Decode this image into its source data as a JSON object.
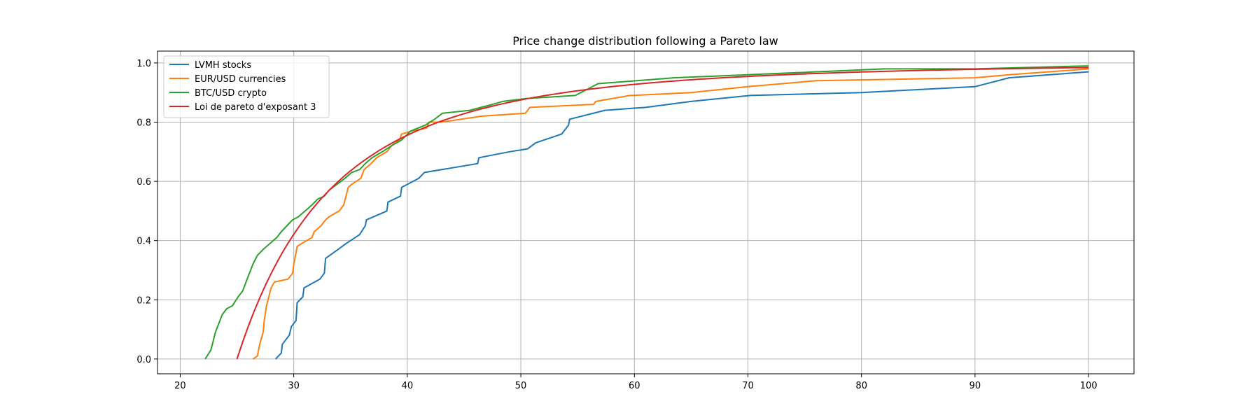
{
  "chart_data": {
    "type": "line",
    "title": "Price change distribution following a Pareto law",
    "xlabel": "",
    "ylabel": "",
    "xlim": [
      18,
      104
    ],
    "ylim": [
      -0.05,
      1.04
    ],
    "xticks": [
      20,
      30,
      40,
      50,
      60,
      70,
      80,
      90,
      100
    ],
    "yticks": [
      0.0,
      0.2,
      0.4,
      0.6,
      0.8,
      1.0
    ],
    "grid": true,
    "legend_position": "top-left",
    "series": [
      {
        "name": "LVMH stocks",
        "color": "#1f77b4",
        "points": [
          [
            28.4,
            0.0
          ],
          [
            28.9,
            0.02
          ],
          [
            29.0,
            0.05
          ],
          [
            29.6,
            0.08
          ],
          [
            29.8,
            0.11
          ],
          [
            30.2,
            0.13
          ],
          [
            30.3,
            0.19
          ],
          [
            30.8,
            0.21
          ],
          [
            30.9,
            0.24
          ],
          [
            32.3,
            0.27
          ],
          [
            32.7,
            0.29
          ],
          [
            32.8,
            0.34
          ],
          [
            33.9,
            0.37
          ],
          [
            34.6,
            0.39
          ],
          [
            35.8,
            0.42
          ],
          [
            36.3,
            0.45
          ],
          [
            36.4,
            0.47
          ],
          [
            38.2,
            0.5
          ],
          [
            38.3,
            0.53
          ],
          [
            39.4,
            0.55
          ],
          [
            39.5,
            0.58
          ],
          [
            40.5,
            0.6
          ],
          [
            41.0,
            0.61
          ],
          [
            41.5,
            0.63
          ],
          [
            46.2,
            0.66
          ],
          [
            46.3,
            0.68
          ],
          [
            49.0,
            0.7
          ],
          [
            50.6,
            0.71
          ],
          [
            51.3,
            0.73
          ],
          [
            53.6,
            0.76
          ],
          [
            54.2,
            0.79
          ],
          [
            54.3,
            0.81
          ],
          [
            57.4,
            0.84
          ],
          [
            61.0,
            0.85
          ],
          [
            65.0,
            0.87
          ],
          [
            70.2,
            0.89
          ],
          [
            80.0,
            0.9
          ],
          [
            90.0,
            0.92
          ],
          [
            93.0,
            0.95
          ],
          [
            100.0,
            0.97
          ]
        ]
      },
      {
        "name": "EUR/USD currencies",
        "color": "#ff7f0e",
        "points": [
          [
            26.4,
            0.0
          ],
          [
            26.8,
            0.01
          ],
          [
            27.0,
            0.05
          ],
          [
            27.3,
            0.09
          ],
          [
            27.4,
            0.13
          ],
          [
            27.6,
            0.18
          ],
          [
            27.8,
            0.21
          ],
          [
            28.0,
            0.24
          ],
          [
            28.3,
            0.26
          ],
          [
            29.5,
            0.27
          ],
          [
            29.9,
            0.29
          ],
          [
            30.0,
            0.32
          ],
          [
            30.2,
            0.36
          ],
          [
            30.3,
            0.38
          ],
          [
            30.7,
            0.39
          ],
          [
            31.6,
            0.41
          ],
          [
            31.8,
            0.43
          ],
          [
            32.4,
            0.45
          ],
          [
            32.8,
            0.47
          ],
          [
            33.1,
            0.48
          ],
          [
            34.0,
            0.5
          ],
          [
            34.4,
            0.52
          ],
          [
            34.6,
            0.55
          ],
          [
            34.8,
            0.58
          ],
          [
            35.1,
            0.59
          ],
          [
            35.9,
            0.61
          ],
          [
            36.2,
            0.64
          ],
          [
            36.8,
            0.66
          ],
          [
            37.3,
            0.68
          ],
          [
            38.2,
            0.7
          ],
          [
            38.6,
            0.72
          ],
          [
            39.3,
            0.74
          ],
          [
            39.5,
            0.76
          ],
          [
            40.4,
            0.77
          ],
          [
            41.7,
            0.78
          ],
          [
            41.9,
            0.8
          ],
          [
            43.0,
            0.8
          ],
          [
            46.5,
            0.82
          ],
          [
            50.4,
            0.83
          ],
          [
            50.8,
            0.85
          ],
          [
            56.4,
            0.86
          ],
          [
            56.6,
            0.87
          ],
          [
            59.6,
            0.89
          ],
          [
            59.8,
            0.89
          ],
          [
            65.0,
            0.9
          ],
          [
            70.0,
            0.92
          ],
          [
            76.0,
            0.94
          ],
          [
            90.0,
            0.95
          ],
          [
            93.0,
            0.96
          ],
          [
            100.0,
            0.98
          ]
        ]
      },
      {
        "name": "BTC/USD crypto",
        "color": "#2ca02c",
        "points": [
          [
            22.2,
            0.0
          ],
          [
            22.7,
            0.03
          ],
          [
            22.9,
            0.06
          ],
          [
            23.1,
            0.09
          ],
          [
            23.4,
            0.12
          ],
          [
            23.7,
            0.15
          ],
          [
            24.1,
            0.17
          ],
          [
            24.6,
            0.18
          ],
          [
            25.1,
            0.21
          ],
          [
            25.5,
            0.23
          ],
          [
            25.8,
            0.26
          ],
          [
            26.1,
            0.29
          ],
          [
            26.4,
            0.32
          ],
          [
            26.8,
            0.35
          ],
          [
            27.3,
            0.37
          ],
          [
            27.9,
            0.39
          ],
          [
            28.5,
            0.41
          ],
          [
            28.9,
            0.43
          ],
          [
            29.4,
            0.45
          ],
          [
            29.9,
            0.47
          ],
          [
            30.4,
            0.48
          ],
          [
            31.0,
            0.5
          ],
          [
            31.6,
            0.52
          ],
          [
            32.1,
            0.54
          ],
          [
            32.7,
            0.55
          ],
          [
            33.1,
            0.57
          ],
          [
            33.8,
            0.59
          ],
          [
            34.5,
            0.61
          ],
          [
            35.1,
            0.63
          ],
          [
            35.8,
            0.64
          ],
          [
            36.3,
            0.66
          ],
          [
            36.9,
            0.68
          ],
          [
            37.8,
            0.7
          ],
          [
            38.6,
            0.72
          ],
          [
            39.5,
            0.74
          ],
          [
            40.3,
            0.77
          ],
          [
            41.6,
            0.79
          ],
          [
            42.4,
            0.81
          ],
          [
            43.1,
            0.83
          ],
          [
            45.5,
            0.84
          ],
          [
            47.5,
            0.86
          ],
          [
            48.4,
            0.87
          ],
          [
            50.5,
            0.88
          ],
          [
            54.8,
            0.89
          ],
          [
            56.8,
            0.93
          ],
          [
            63.5,
            0.95
          ],
          [
            70.0,
            0.96
          ],
          [
            82.0,
            0.98
          ],
          [
            90.0,
            0.98
          ],
          [
            100.0,
            0.99
          ]
        ]
      },
      {
        "name": "Loi de pareto d'exposant 3",
        "color": "#d62728",
        "pareto": {
          "xm": 25,
          "alpha": 3
        }
      }
    ]
  }
}
